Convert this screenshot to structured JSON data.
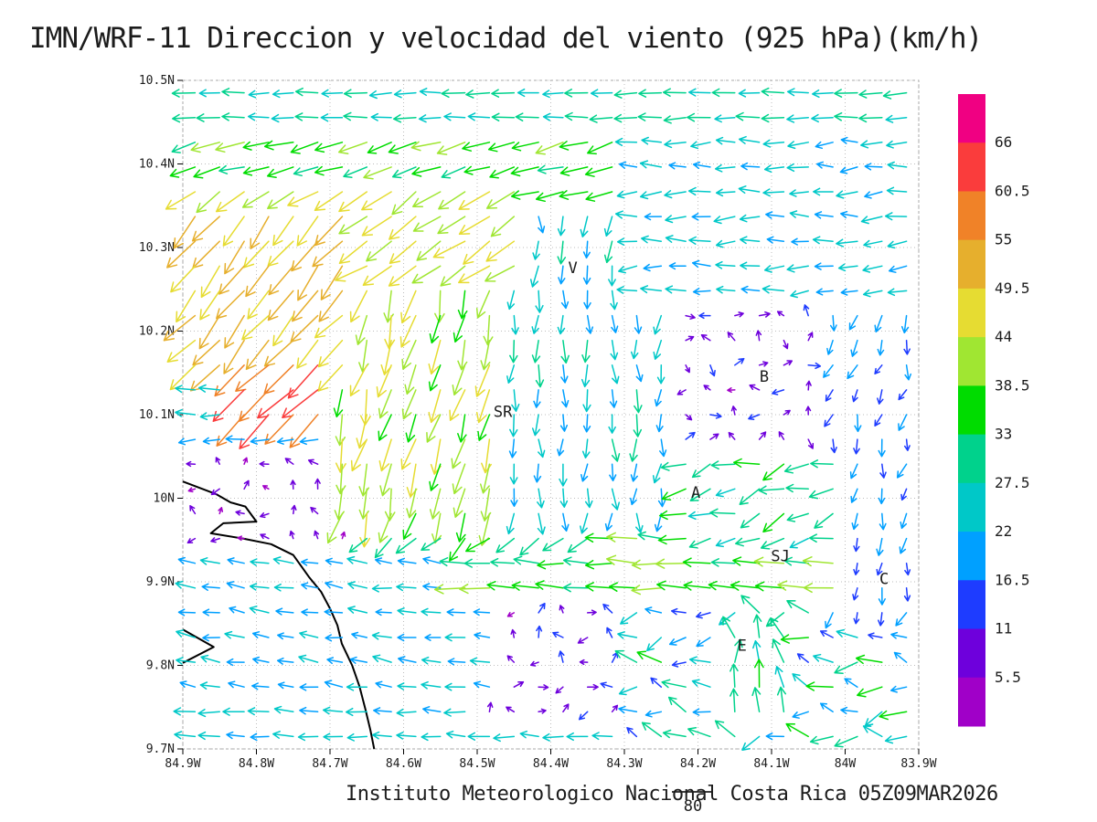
{
  "title": "IMN/WRF-11 Direccion y velocidad del viento (925 hPa)(km/h)",
  "footer": {
    "text": "Instituto Meteorologico Nacional Costa Rica 05Z09MAR2026",
    "reference_vector_label": "80",
    "reference_vector_speed_kmh": 80
  },
  "chart_data": {
    "type": "vector_field",
    "title": "IMN/WRF-11 Direccion y velocidad del viento (925 hPa)(km/h)",
    "model": "IMN/WRF-11",
    "variable": "Direccion y velocidad del viento",
    "level": "925 hPa",
    "units": "km/h",
    "valid_time": "05Z09MAR2026",
    "x_axis": {
      "tick_labels": [
        "84.9W",
        "84.8W",
        "84.7W",
        "84.6W",
        "84.5W",
        "84.4W",
        "84.3W",
        "84.2W",
        "84.1W",
        "84W",
        "83.9W"
      ],
      "lon_west": 84.9,
      "lon_east": 83.9,
      "grid_step_deg": 0.1
    },
    "y_axis": {
      "tick_labels": [
        "10.5N",
        "10.4N",
        "10.3N",
        "10.2N",
        "10.1N",
        "10N",
        "9.9N",
        "9.8N",
        "9.7N"
      ],
      "lat_north": 10.5,
      "lat_south": 9.7,
      "grid_step_deg": 0.1
    },
    "colorbar": {
      "labels_top_to_bottom": [
        "66",
        "60.5",
        "55",
        "49.5",
        "44",
        "38.5",
        "33",
        "27.5",
        "22",
        "16.5",
        "11",
        "5.5"
      ],
      "levels_kmh_ascending": [
        5.5,
        11,
        16.5,
        22,
        27.5,
        33,
        38.5,
        44,
        49.5,
        55,
        60.5,
        66
      ],
      "colors_low_to_high": [
        "#a000c8",
        "#6e00dc",
        "#1e3cff",
        "#00a0ff",
        "#00c8c8",
        "#00d28c",
        "#00dc00",
        "#a0e632",
        "#e6dc32",
        "#e6af2d",
        "#f08228",
        "#fa3c3c",
        "#f00082"
      ]
    },
    "stations": [
      {
        "label": "V",
        "lon_w": 84.37,
        "lat": 10.275
      },
      {
        "label": "B",
        "lon_w": 84.11,
        "lat": 10.145
      },
      {
        "label": "SR",
        "lon_w": 84.465,
        "lat": 10.103
      },
      {
        "label": "A",
        "lon_w": 84.203,
        "lat": 10.006
      },
      {
        "label": "SJ",
        "lon_w": 84.088,
        "lat": 9.93
      },
      {
        "label": "C",
        "lon_w": 83.947,
        "lat": 9.903
      },
      {
        "label": "E",
        "lon_w": 84.14,
        "lat": 9.823
      }
    ],
    "coastline": {
      "main": [
        [
          84.9,
          10.02
        ],
        [
          84.855,
          10.005
        ],
        [
          84.835,
          9.995
        ],
        [
          84.815,
          9.99
        ],
        [
          84.8,
          9.972
        ],
        [
          84.845,
          9.97
        ],
        [
          84.862,
          9.958
        ],
        [
          84.82,
          9.952
        ],
        [
          84.78,
          9.945
        ],
        [
          84.75,
          9.932
        ],
        [
          84.728,
          9.905
        ],
        [
          84.712,
          9.888
        ],
        [
          84.7,
          9.868
        ],
        [
          84.69,
          9.848
        ],
        [
          84.684,
          9.826
        ],
        [
          84.67,
          9.8
        ],
        [
          84.66,
          9.775
        ],
        [
          84.652,
          9.748
        ],
        [
          84.645,
          9.722
        ],
        [
          84.64,
          9.7
        ]
      ],
      "spit": [
        [
          84.9,
          9.843
        ],
        [
          84.858,
          9.822
        ],
        [
          84.9,
          9.803
        ]
      ]
    },
    "wind_field": {
      "grid_nx": 30,
      "grid_ny": 27,
      "zones": [
        {
          "name": "nw-core-jet",
          "lon": [
            84.84,
            84.71
          ],
          "lat": [
            10.1,
            10.17
          ],
          "dir": 222,
          "speed": 60,
          "dvar": 8,
          "svar": 4
        },
        {
          "name": "nw-orange-wedge",
          "lon": [
            84.95,
            84.68
          ],
          "lat": [
            10.14,
            10.34
          ],
          "dir": 230,
          "speed": 51,
          "dvar": 12,
          "svar": 4
        },
        {
          "name": "nw-yellow-band",
          "lon": [
            84.95,
            84.45
          ],
          "lat": [
            10.26,
            10.37
          ],
          "dir": 214,
          "speed": 44,
          "dvar": 10,
          "svar": 4
        },
        {
          "name": "w-yellow-column",
          "lon": [
            84.7,
            84.48
          ],
          "lat": [
            9.96,
            10.33
          ],
          "dir": 255,
          "speed": 42,
          "dvar": 13,
          "svar": 6
        },
        {
          "name": "w-purple-calm",
          "lon": [
            84.95,
            84.66
          ],
          "lat": [
            9.95,
            10.07
          ],
          "dir": 140,
          "speed": 7,
          "dvar": 90,
          "svar": 3
        },
        {
          "name": "n-green-band",
          "lon": [
            84.95,
            84.3
          ],
          "lat": [
            10.34,
            10.43
          ],
          "dir": 196,
          "speed": 36,
          "dvar": 9,
          "svar": 4
        },
        {
          "name": "top-easterly",
          "lon": [
            84.95,
            83.85
          ],
          "lat": [
            10.43,
            10.55
          ],
          "dir": 182,
          "speed": 27,
          "dvar": 6,
          "svar": 3
        },
        {
          "name": "ne-easterly",
          "lon": [
            84.3,
            83.85
          ],
          "lat": [
            10.24,
            10.43
          ],
          "dir": 183,
          "speed": 23,
          "dvar": 14,
          "svar": 4
        },
        {
          "name": "center-southerly",
          "lon": [
            84.5,
            84.24
          ],
          "lat": [
            9.98,
            10.34
          ],
          "dir": 268,
          "speed": 24,
          "dvar": 18,
          "svar": 5
        },
        {
          "name": "center-green-curve",
          "lon": [
            84.66,
            84.32
          ],
          "lat": [
            9.94,
            10.01
          ],
          "dir": 222,
          "speed": 33,
          "dvar": 14,
          "svar": 5
        },
        {
          "name": "valle-green",
          "lon": [
            84.24,
            84.0
          ],
          "lat": [
            9.95,
            10.06
          ],
          "dir": 200,
          "speed": 30,
          "dvar": 25,
          "svar": 7
        },
        {
          "name": "sj-westerly-jet",
          "lon": [
            84.52,
            84.0
          ],
          "lat": [
            9.87,
            9.96
          ],
          "dir": 178,
          "speed": 35,
          "dvar": 8,
          "svar": 6
        },
        {
          "name": "e-downslope",
          "lon": [
            84.05,
            83.85
          ],
          "lat": [
            9.86,
            10.3
          ],
          "dir": 255,
          "speed": 16,
          "dvar": 25,
          "svar": 5
        },
        {
          "name": "e-mixed-calm",
          "lon": [
            84.26,
            83.85
          ],
          "lat": [
            9.96,
            10.36
          ],
          "dir": 70,
          "speed": 9,
          "dvar": 150,
          "svar": 4
        },
        {
          "name": "sw-coastal",
          "lon": [
            84.95,
            84.48
          ],
          "lat": [
            9.76,
            9.94
          ],
          "dir": 172,
          "speed": 21,
          "dvar": 10,
          "svar": 4
        },
        {
          "name": "s-purple-patch",
          "lon": [
            84.5,
            84.3
          ],
          "lat": [
            9.73,
            9.9
          ],
          "dir": 110,
          "speed": 9,
          "dvar": 130,
          "svar": 4
        },
        {
          "name": "se-green-updraft",
          "lon": [
            84.18,
            84.06
          ],
          "lat": [
            9.73,
            9.84
          ],
          "dir": 100,
          "speed": 32,
          "dvar": 25,
          "svar": 6
        },
        {
          "name": "s-easterly-band",
          "lon": [
            84.95,
            84.3
          ],
          "lat": [
            9.66,
            9.79
          ],
          "dir": 178,
          "speed": 24,
          "dvar": 8,
          "svar": 4
        },
        {
          "name": "se-mixed",
          "lon": [
            84.3,
            83.85
          ],
          "lat": [
            9.66,
            9.96
          ],
          "dir": 178,
          "speed": 25,
          "dvar": 45,
          "svar": 11
        }
      ],
      "default_zone": {
        "name": "background-easterly",
        "dir": 182,
        "speed": 22,
        "dvar": 10,
        "svar": 4
      }
    }
  }
}
